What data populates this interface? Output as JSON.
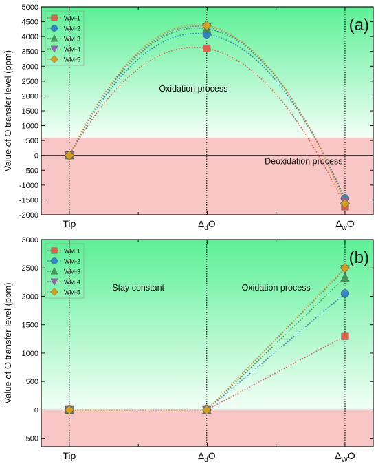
{
  "chart_data": [
    {
      "type": "line",
      "panel_label": "(a)",
      "ylabel": "Value of O transfer level (ppm)",
      "categories": [
        "Tip",
        "ΔdO",
        "ΔwO"
      ],
      "category_labels": [
        {
          "main": "Tip",
          "sub": "",
          "tail": ""
        },
        {
          "main": "Δ",
          "sub": "d",
          "tail": "O"
        },
        {
          "main": "Δ",
          "sub": "w",
          "tail": "O"
        }
      ],
      "ylim": [
        -2000,
        5000
      ],
      "yticks": [
        -2000,
        -1500,
        -1000,
        -500,
        0,
        500,
        1000,
        1500,
        2000,
        2500,
        3000,
        3500,
        4000,
        4500,
        5000
      ],
      "band_boundary": 600,
      "legend": "top-left",
      "annotations": [
        {
          "text": "Oxidation process",
          "x": 0.9,
          "y": 2150
        },
        {
          "text": "Deoxidation process",
          "x": 1.7,
          "y": -300
        }
      ],
      "series": [
        {
          "name": "WM-1",
          "color": "#e06048",
          "marker": "square",
          "values": [
            0,
            3600,
            -1720
          ]
        },
        {
          "name": "WM-2",
          "color": "#2f86c8",
          "marker": "circle",
          "values": [
            0,
            4080,
            -1450
          ]
        },
        {
          "name": "WM-3",
          "color": "#3f9a52",
          "marker": "triangle-up",
          "values": [
            0,
            4260,
            -1500
          ]
        },
        {
          "name": "WM-4",
          "color": "#9b62b2",
          "marker": "triangle-down",
          "values": [
            0,
            4320,
            -1560
          ]
        },
        {
          "name": "WM-5",
          "color": "#d6a01c",
          "marker": "diamond",
          "values": [
            0,
            4370,
            -1620
          ]
        }
      ]
    },
    {
      "type": "line",
      "panel_label": "(b)",
      "ylabel": "Value of O transfer level (ppm)",
      "categories": [
        "Tip",
        "ΔdO",
        "ΔWO"
      ],
      "category_labels": [
        {
          "main": "Tip",
          "sub": "",
          "tail": ""
        },
        {
          "main": "Δ",
          "sub": "d",
          "tail": "O"
        },
        {
          "main": "Δ",
          "sub": "W",
          "tail": "O"
        }
      ],
      "ylim": [
        -650,
        3000
      ],
      "yticks": [
        -500,
        0,
        500,
        1000,
        1500,
        2000,
        2500,
        3000
      ],
      "band_boundary": 0,
      "legend": "top-left",
      "annotations": [
        {
          "text": "Stay constant",
          "x": 0.5,
          "y": 2100
        },
        {
          "text": "Oxidation process",
          "x": 1.5,
          "y": 2100
        }
      ],
      "series": [
        {
          "name": "WM-1",
          "color": "#e06048",
          "marker": "square",
          "values": [
            0,
            0,
            1300
          ]
        },
        {
          "name": "WM-2",
          "color": "#2f86c8",
          "marker": "circle",
          "values": [
            0,
            0,
            2050
          ]
        },
        {
          "name": "WM-3",
          "color": "#3f9a52",
          "marker": "triangle-up",
          "values": [
            0,
            0,
            2330
          ]
        },
        {
          "name": "WM-4",
          "color": "#9b62b2",
          "marker": "triangle-down",
          "values": [
            0,
            0,
            2480
          ]
        },
        {
          "name": "WM-5",
          "color": "#d6a01c",
          "marker": "diamond",
          "values": [
            0,
            0,
            2500
          ]
        }
      ]
    }
  ]
}
